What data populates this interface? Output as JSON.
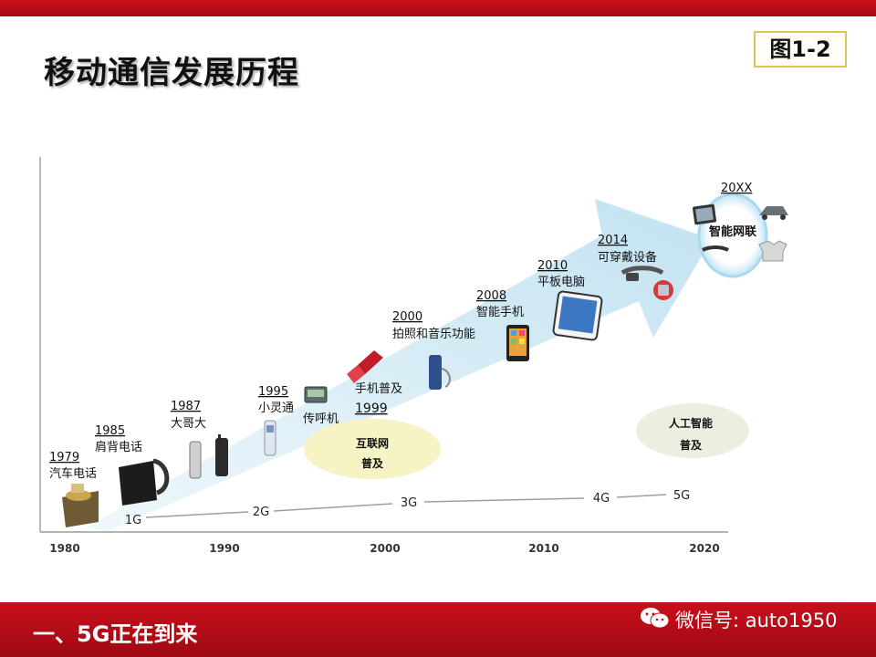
{
  "header": {
    "title": "移动通信发展历程",
    "figure_label": "图1-2"
  },
  "timeline": {
    "x_axis_years": [
      "1980",
      "1990",
      "2000",
      "2010",
      "2020"
    ],
    "generations": [
      "1G",
      "2G",
      "3G",
      "4G",
      "5G"
    ],
    "milestones": [
      {
        "year": "1979",
        "label": "汽车电话"
      },
      {
        "year": "1985",
        "label": "肩背电话"
      },
      {
        "year": "1987",
        "label": "大哥大"
      },
      {
        "year": "1995",
        "label": "小灵通"
      },
      {
        "year": "",
        "label": "传呼机"
      },
      {
        "year": "1999",
        "label": "手机普及"
      },
      {
        "year": "2000",
        "label": "拍照和音乐功能"
      },
      {
        "year": "2008",
        "label": "智能手机"
      },
      {
        "year": "2010",
        "label": "平板电脑"
      },
      {
        "year": "2014",
        "label": "可穿戴设备"
      },
      {
        "year": "20XX",
        "label": "智能网联"
      }
    ],
    "bubbles": [
      {
        "line1": "互联网",
        "line2": "普及"
      },
      {
        "line1": "人工智能",
        "line2": "普及"
      }
    ]
  },
  "footer": {
    "section_title": "一、5G正在到来",
    "wechat_text": "微信号: auto1950"
  },
  "colors": {
    "brand_red": "#c8101c",
    "arrow_blue": "#c9e6f2",
    "bubble_yellow": "#f6f3c4",
    "bubble_green": "#ecefdf"
  }
}
